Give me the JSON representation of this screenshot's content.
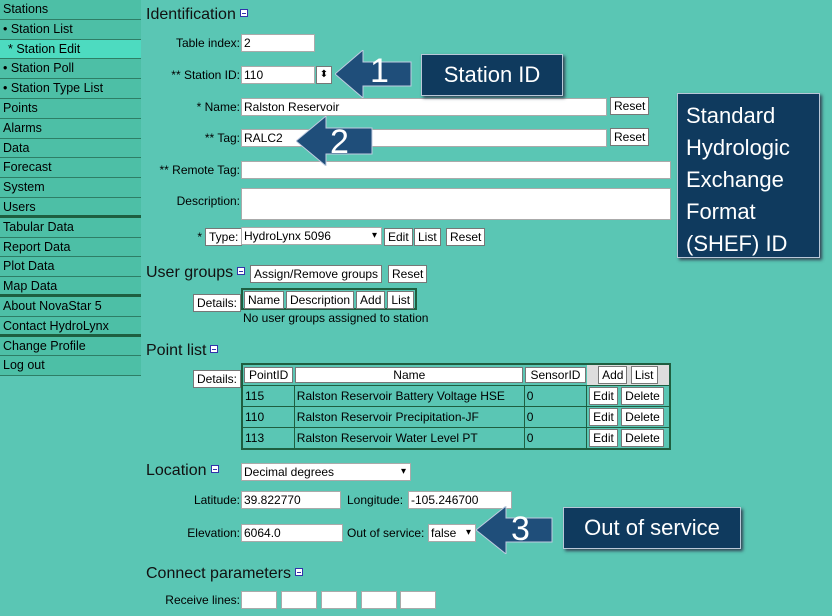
{
  "sidebar": {
    "items": [
      {
        "label": "Stations"
      },
      {
        "label": "• Station List"
      },
      {
        "label": "* Station Edit",
        "active": true
      },
      {
        "label": "• Station Poll"
      },
      {
        "label": "• Station Type List"
      },
      {
        "label": "Points"
      },
      {
        "label": "Alarms"
      },
      {
        "label": "Data"
      },
      {
        "label": "Forecast"
      },
      {
        "label": "System"
      },
      {
        "label": "Users"
      },
      {
        "label": "Tabular Data"
      },
      {
        "label": "Report Data"
      },
      {
        "label": "Plot Data"
      },
      {
        "label": "Map Data"
      },
      {
        "label": "About NovaStar 5"
      },
      {
        "label": "Contact HydroLynx"
      },
      {
        "label": "Change Profile"
      },
      {
        "label": "Log out"
      }
    ]
  },
  "identification": {
    "title": "Identification",
    "table_index_label": "Table index:",
    "table_index": "2",
    "station_id_label": "** Station ID:",
    "station_id": "110",
    "name_label": "* Name:",
    "name": "Ralston Reservoir",
    "tag_label": "** Tag:",
    "tag": "RALC2",
    "remote_tag_label": "** Remote Tag:",
    "remote_tag": "",
    "description_label": "Description:",
    "description": "",
    "type_label": "Type:",
    "type_prefix": "*",
    "type_value": "HydroLynx 5096",
    "reset": "Reset",
    "edit": "Edit",
    "list": "List"
  },
  "user_groups": {
    "title": "User groups",
    "assign": "Assign/Remove groups",
    "reset": "Reset",
    "details": "Details:",
    "columns": [
      "Name",
      "Description"
    ],
    "add": "Add",
    "list": "List",
    "empty": "No user groups assigned to station"
  },
  "point_list": {
    "title": "Point list",
    "details": "Details:",
    "columns": [
      "PointID",
      "Name",
      "SensorID"
    ],
    "add": "Add",
    "list": "List",
    "edit": "Edit",
    "delete": "Delete",
    "rows": [
      {
        "id": "115",
        "name": "Ralston Reservoir Battery Voltage HSE",
        "sensor": "0"
      },
      {
        "id": "110",
        "name": "Ralston Reservoir Precipitation-JF",
        "sensor": "0"
      },
      {
        "id": "113",
        "name": "Ralston Reservoir Water Level PT",
        "sensor": "0"
      }
    ]
  },
  "location": {
    "title": "Location",
    "format": "Decimal degrees",
    "lat_label": "Latitude:",
    "lat": "39.822770",
    "lon_label": "Longitude:",
    "lon": "-105.246700",
    "elev_label": "Elevation:",
    "elev": "6064.0",
    "oos_label": "Out of service:",
    "oos": "false"
  },
  "connect": {
    "title": "Connect parameters",
    "receive_label": "Receive lines:"
  },
  "callouts": {
    "c1_num": "1",
    "c1": "Station ID",
    "c2_num": "2",
    "c2": "Standard Hydrologic Exchange Format (SHEF) ID",
    "c3_num": "3",
    "c3": "Out of service"
  },
  "colors": {
    "background": "#5ac6b4",
    "callout": "#0f3a5e"
  }
}
